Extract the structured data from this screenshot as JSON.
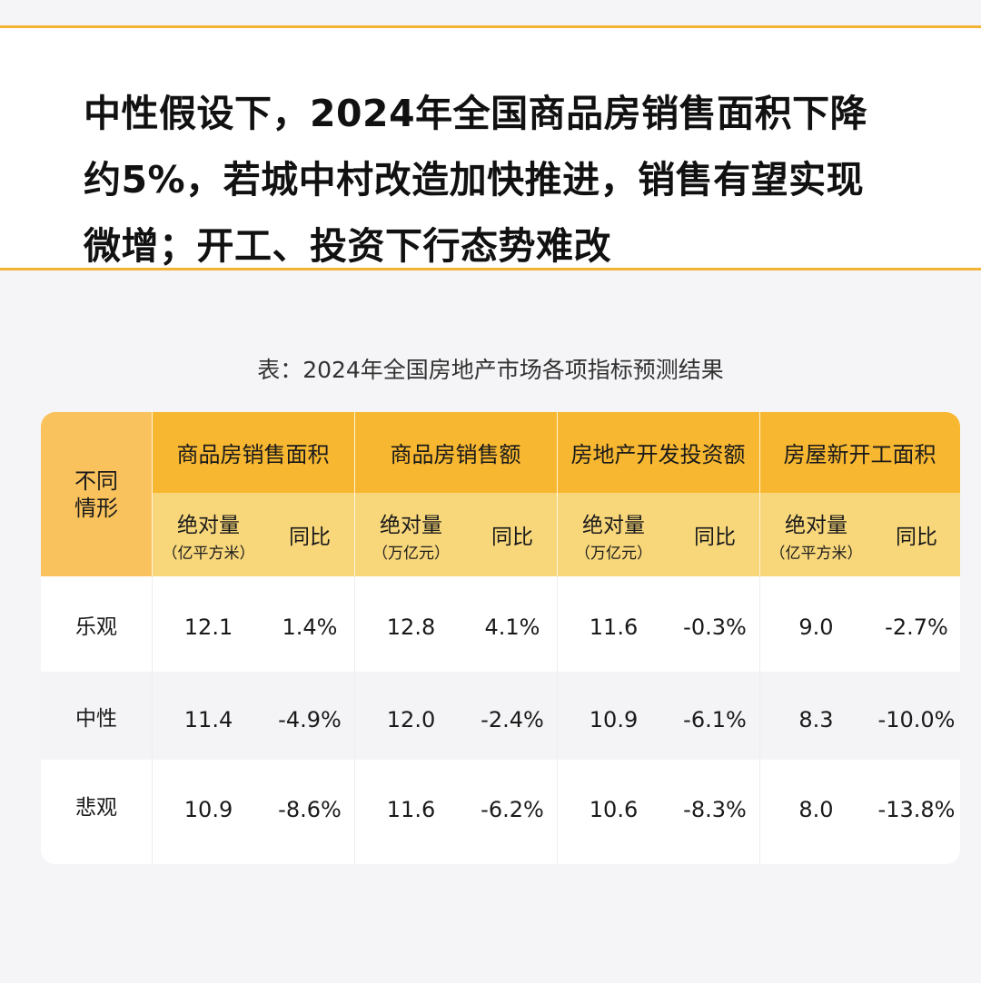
{
  "headline": {
    "lines": [
      "中性假设下，2024年全国商品房销售面积下降",
      "约5%，若城中村改造加快推进，销售有望实现",
      "微增；开工、投资下行态势难改"
    ]
  },
  "caption": "表：2024年全国房地产市场各项指标预测结果",
  "table": {
    "corner_label": "不同情形",
    "groups": [
      {
        "title": "商品房销售面积",
        "abs_label": "绝对量",
        "abs_unit": "（亿平方米）",
        "yoy_label": "同比"
      },
      {
        "title": "商品房销售额",
        "abs_label": "绝对量",
        "abs_unit": "（万亿元）",
        "yoy_label": "同比"
      },
      {
        "title": "房地产开发投资额",
        "abs_label": "绝对量",
        "abs_unit": "（万亿元）",
        "yoy_label": "同比"
      },
      {
        "title": "房屋新开工面积",
        "abs_label": "绝对量",
        "abs_unit": "（亿平方米）",
        "yoy_label": "同比"
      }
    ],
    "rows": [
      {
        "scenario": "乐观",
        "values": [
          "12.1",
          "1.4%",
          "12.8",
          "4.1%",
          "11.6",
          "-0.3%",
          "9.0",
          "-2.7%"
        ]
      },
      {
        "scenario": "中性",
        "values": [
          "11.4",
          "-4.9%",
          "12.0",
          "-2.4%",
          "10.9",
          "-6.1%",
          "8.3",
          "-10.0%"
        ]
      },
      {
        "scenario": "悲观",
        "values": [
          "10.9",
          "-8.6%",
          "11.6",
          "-6.2%",
          "10.6",
          "-8.3%",
          "8.0",
          "-13.8%"
        ]
      }
    ]
  },
  "colors": {
    "accent": "#f5b335",
    "header_group": "#f7b731",
    "header_sub": "#f8d77b",
    "corner": "#f9c25d"
  }
}
